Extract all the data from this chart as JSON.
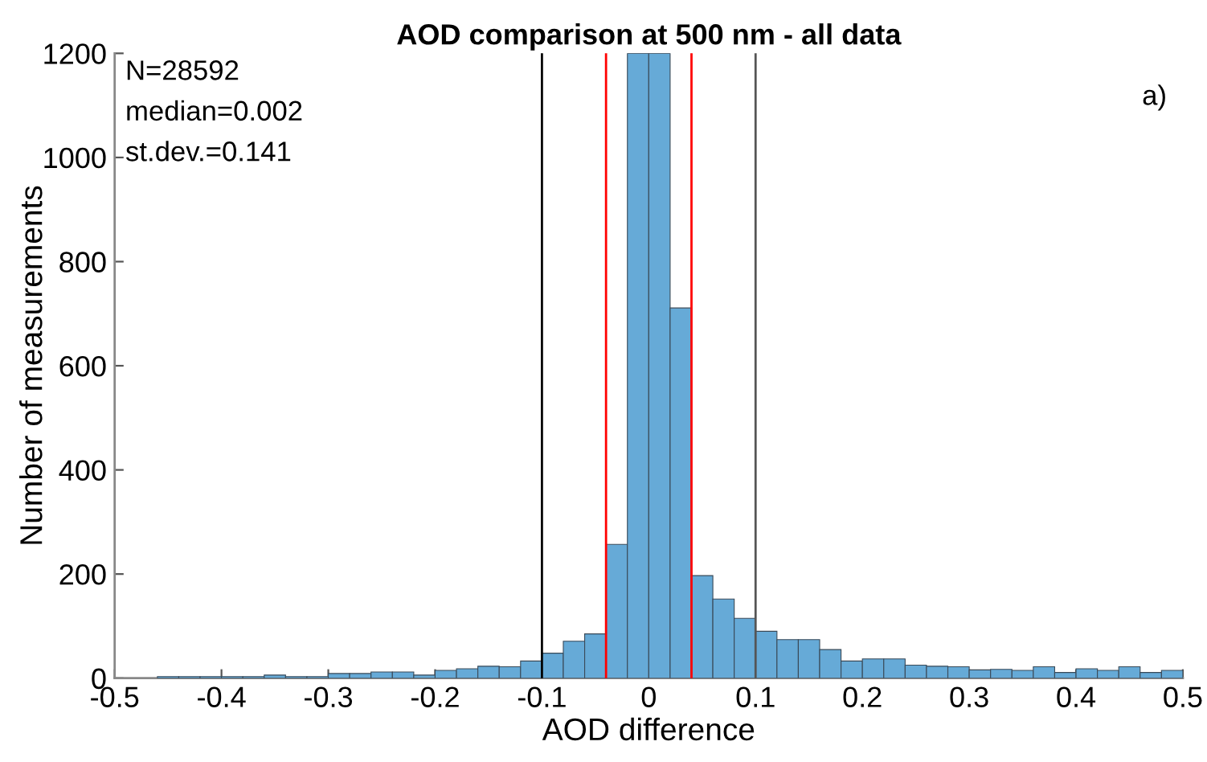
{
  "chart_data": {
    "type": "histogram",
    "title": "AOD comparison at 500 nm - all data",
    "xlabel": "AOD difference",
    "ylabel": "Number of measurements",
    "bins": [
      -0.46,
      -0.44,
      -0.42,
      -0.4,
      -0.38,
      -0.36,
      -0.34,
      -0.32,
      -0.3,
      -0.28,
      -0.26,
      -0.24,
      -0.22,
      -0.2,
      -0.18,
      -0.16,
      -0.14,
      -0.12,
      -0.1,
      -0.08,
      -0.06,
      -0.04,
      -0.02,
      0,
      0.02,
      0.04,
      0.06,
      0.08,
      0.1,
      0.12,
      0.14,
      0.16,
      0.18,
      0.2,
      0.22,
      0.24,
      0.26,
      0.28,
      0.3,
      0.32,
      0.34,
      0.36,
      0.38,
      0.4,
      0.42,
      0.44,
      0.46,
      0.48,
      0.5
    ],
    "values": [
      3,
      3,
      3,
      3,
      3,
      6,
      3,
      3,
      9,
      9,
      12,
      12,
      6,
      15,
      18,
      23,
      22,
      33,
      48,
      71,
      85,
      257,
      1200,
      1200,
      711,
      197,
      152,
      115,
      90,
      74,
      74,
      55,
      33,
      37,
      37,
      25,
      23,
      22,
      16,
      17,
      15,
      22,
      11,
      18,
      15,
      22,
      11,
      15
    ],
    "color": "#66aad7",
    "xlim": [
      -0.5,
      0.5
    ],
    "xticks": [
      -0.5,
      -0.4,
      -0.3,
      -0.2,
      -0.1,
      {
        "value": 0,
        "label": "0"
      },
      0.1,
      0.2,
      0.3,
      0.4,
      0.5
    ],
    "ylim": [
      0,
      1200
    ],
    "yticks": [
      0,
      200,
      400,
      600,
      800,
      1000,
      1200
    ],
    "ref_lines": [
      {
        "axis": "x",
        "value": -0.1,
        "color": "#000000"
      },
      {
        "axis": "x",
        "value": 0.1,
        "color": "#555555"
      },
      {
        "axis": "x",
        "value": -0.04,
        "color": "#ff0000"
      },
      {
        "axis": "x",
        "value": 0.04,
        "color": "#ff0000"
      }
    ],
    "annotations": [
      "N=28592",
      "median=0.002",
      "st.dev.=0.141",
      "a)"
    ],
    "grid": false,
    "legend": false
  }
}
